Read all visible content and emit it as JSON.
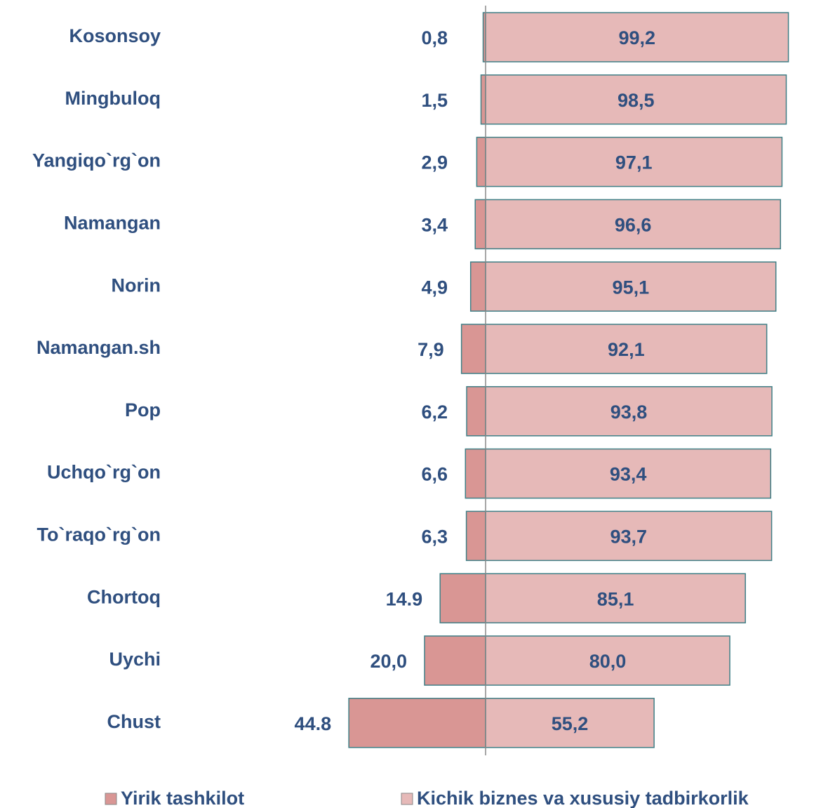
{
  "chart_data": {
    "type": "diverging_bar",
    "categories": [
      "Kosonsoy",
      "Mingbuloq",
      "Yangiqo`rg`on",
      "Namangan",
      "Norin",
      "Namangan.sh",
      "Pop",
      "Uchqo`rg`on",
      "To`raqo`rg`on",
      "Chortoq",
      "Uychi",
      "Chust"
    ],
    "series": [
      {
        "name": "Yirik tashkilot",
        "color": "#d99694",
        "values": [
          0.8,
          1.5,
          2.9,
          3.4,
          4.9,
          7.9,
          6.2,
          6.6,
          6.3,
          14.9,
          20.0,
          44.8
        ],
        "value_labels": [
          "0,8",
          "1,5",
          "2,9",
          "3,4",
          "4,9",
          "7,9",
          "6,2",
          "6,6",
          "6,3",
          "14.9",
          "20,0",
          "44.8"
        ]
      },
      {
        "name": "Kichik biznes va xususiy tadbirkorlik",
        "color": "#e6b9b8",
        "values": [
          99.2,
          98.5,
          97.1,
          96.6,
          95.1,
          92.1,
          93.8,
          93.4,
          93.7,
          85.1,
          80.0,
          55.2
        ],
        "value_labels": [
          "99,2",
          "98,5",
          "97,1",
          "96,6",
          "95,1",
          "92,1",
          "93,8",
          "93,4",
          "93,7",
          "85,1",
          "80,0",
          "55,2"
        ]
      }
    ]
  }
}
